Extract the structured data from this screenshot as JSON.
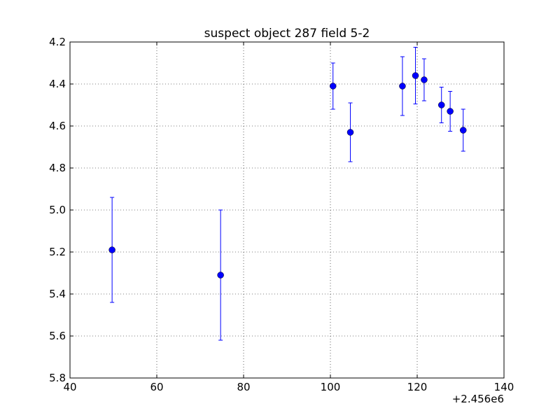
{
  "chart_data": {
    "type": "scatter",
    "title": "suspect object 287 field 5-2",
    "xlabel": "",
    "ylabel": "",
    "x_offset_label": "+2.456e6",
    "xlim": [
      40,
      140
    ],
    "ylim": [
      5.8,
      4.2
    ],
    "y_inverted": true,
    "x_ticks": [
      40,
      60,
      80,
      100,
      120,
      140
    ],
    "x_tick_labels": [
      "40",
      "60",
      "80",
      "100",
      "120",
      "140"
    ],
    "y_ticks": [
      4.2,
      4.4,
      4.6,
      4.8,
      5.0,
      5.2,
      5.4,
      5.6,
      5.8
    ],
    "y_tick_labels": [
      "4.2",
      "4.4",
      "4.6",
      "4.8",
      "5.0",
      "5.2",
      "5.4",
      "5.6",
      "5.8"
    ],
    "grid": true,
    "legend": "none",
    "series": [
      {
        "color": "#0000ff",
        "points": [
          {
            "x": 49.7,
            "y": 5.19,
            "err": 0.25
          },
          {
            "x": 74.7,
            "y": 5.31,
            "err": 0.31
          },
          {
            "x": 100.6,
            "y": 4.41,
            "err": 0.11
          },
          {
            "x": 104.6,
            "y": 4.63,
            "err": 0.14
          },
          {
            "x": 116.6,
            "y": 4.41,
            "err": 0.14
          },
          {
            "x": 119.6,
            "y": 4.36,
            "err": 0.135
          },
          {
            "x": 121.6,
            "y": 4.38,
            "err": 0.1
          },
          {
            "x": 125.6,
            "y": 4.5,
            "err": 0.085
          },
          {
            "x": 127.6,
            "y": 4.53,
            "err": 0.095
          },
          {
            "x": 130.6,
            "y": 4.62,
            "err": 0.1
          }
        ]
      }
    ]
  }
}
